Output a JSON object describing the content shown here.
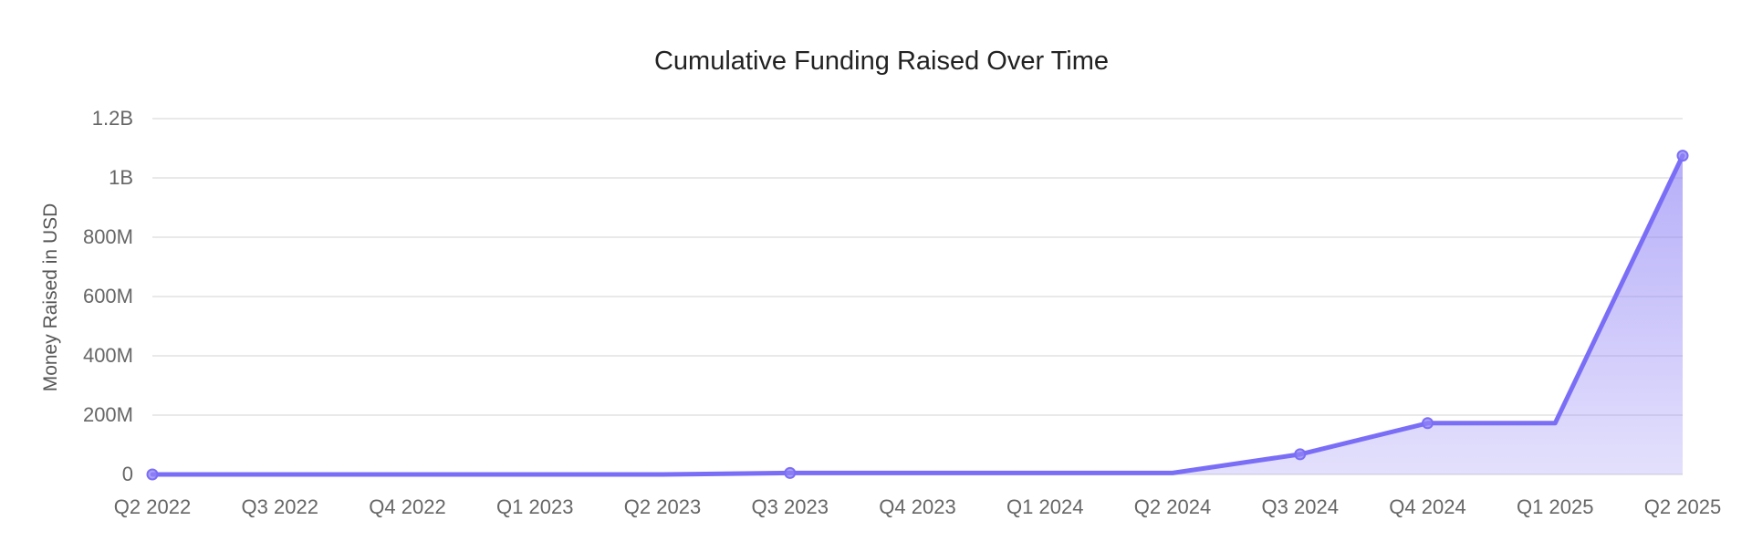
{
  "chart_data": {
    "type": "area",
    "title": "Cumulative Funding Raised Over Time",
    "xlabel": "",
    "ylabel": "Money Raised in USD",
    "categories": [
      "Q2 2022",
      "Q3 2022",
      "Q4 2022",
      "Q1 2023",
      "Q2 2023",
      "Q3 2023",
      "Q4 2023",
      "Q1 2024",
      "Q2 2024",
      "Q3 2024",
      "Q4 2024",
      "Q1 2025",
      "Q2 2025"
    ],
    "series": [
      {
        "values": [
          0,
          0,
          0,
          0,
          0,
          5000000,
          5000000,
          5000000,
          5000000,
          68000000,
          173000000,
          173000000,
          1075000000
        ],
        "markers": [
          true,
          false,
          false,
          false,
          false,
          true,
          false,
          false,
          false,
          true,
          true,
          false,
          true
        ]
      }
    ],
    "ylim": [
      0,
      1200000000
    ],
    "yticks": [
      {
        "value": 0,
        "label": "0"
      },
      {
        "value": 200000000,
        "label": "200M"
      },
      {
        "value": 400000000,
        "label": "400M"
      },
      {
        "value": 600000000,
        "label": "600M"
      },
      {
        "value": 800000000,
        "label": "800M"
      },
      {
        "value": 1000000000,
        "label": "1B"
      },
      {
        "value": 1200000000,
        "label": "1.2B"
      }
    ],
    "grid": true,
    "legend": "none",
    "colors": {
      "line": "#7b6ef6",
      "fill": "#8f83f5"
    }
  }
}
